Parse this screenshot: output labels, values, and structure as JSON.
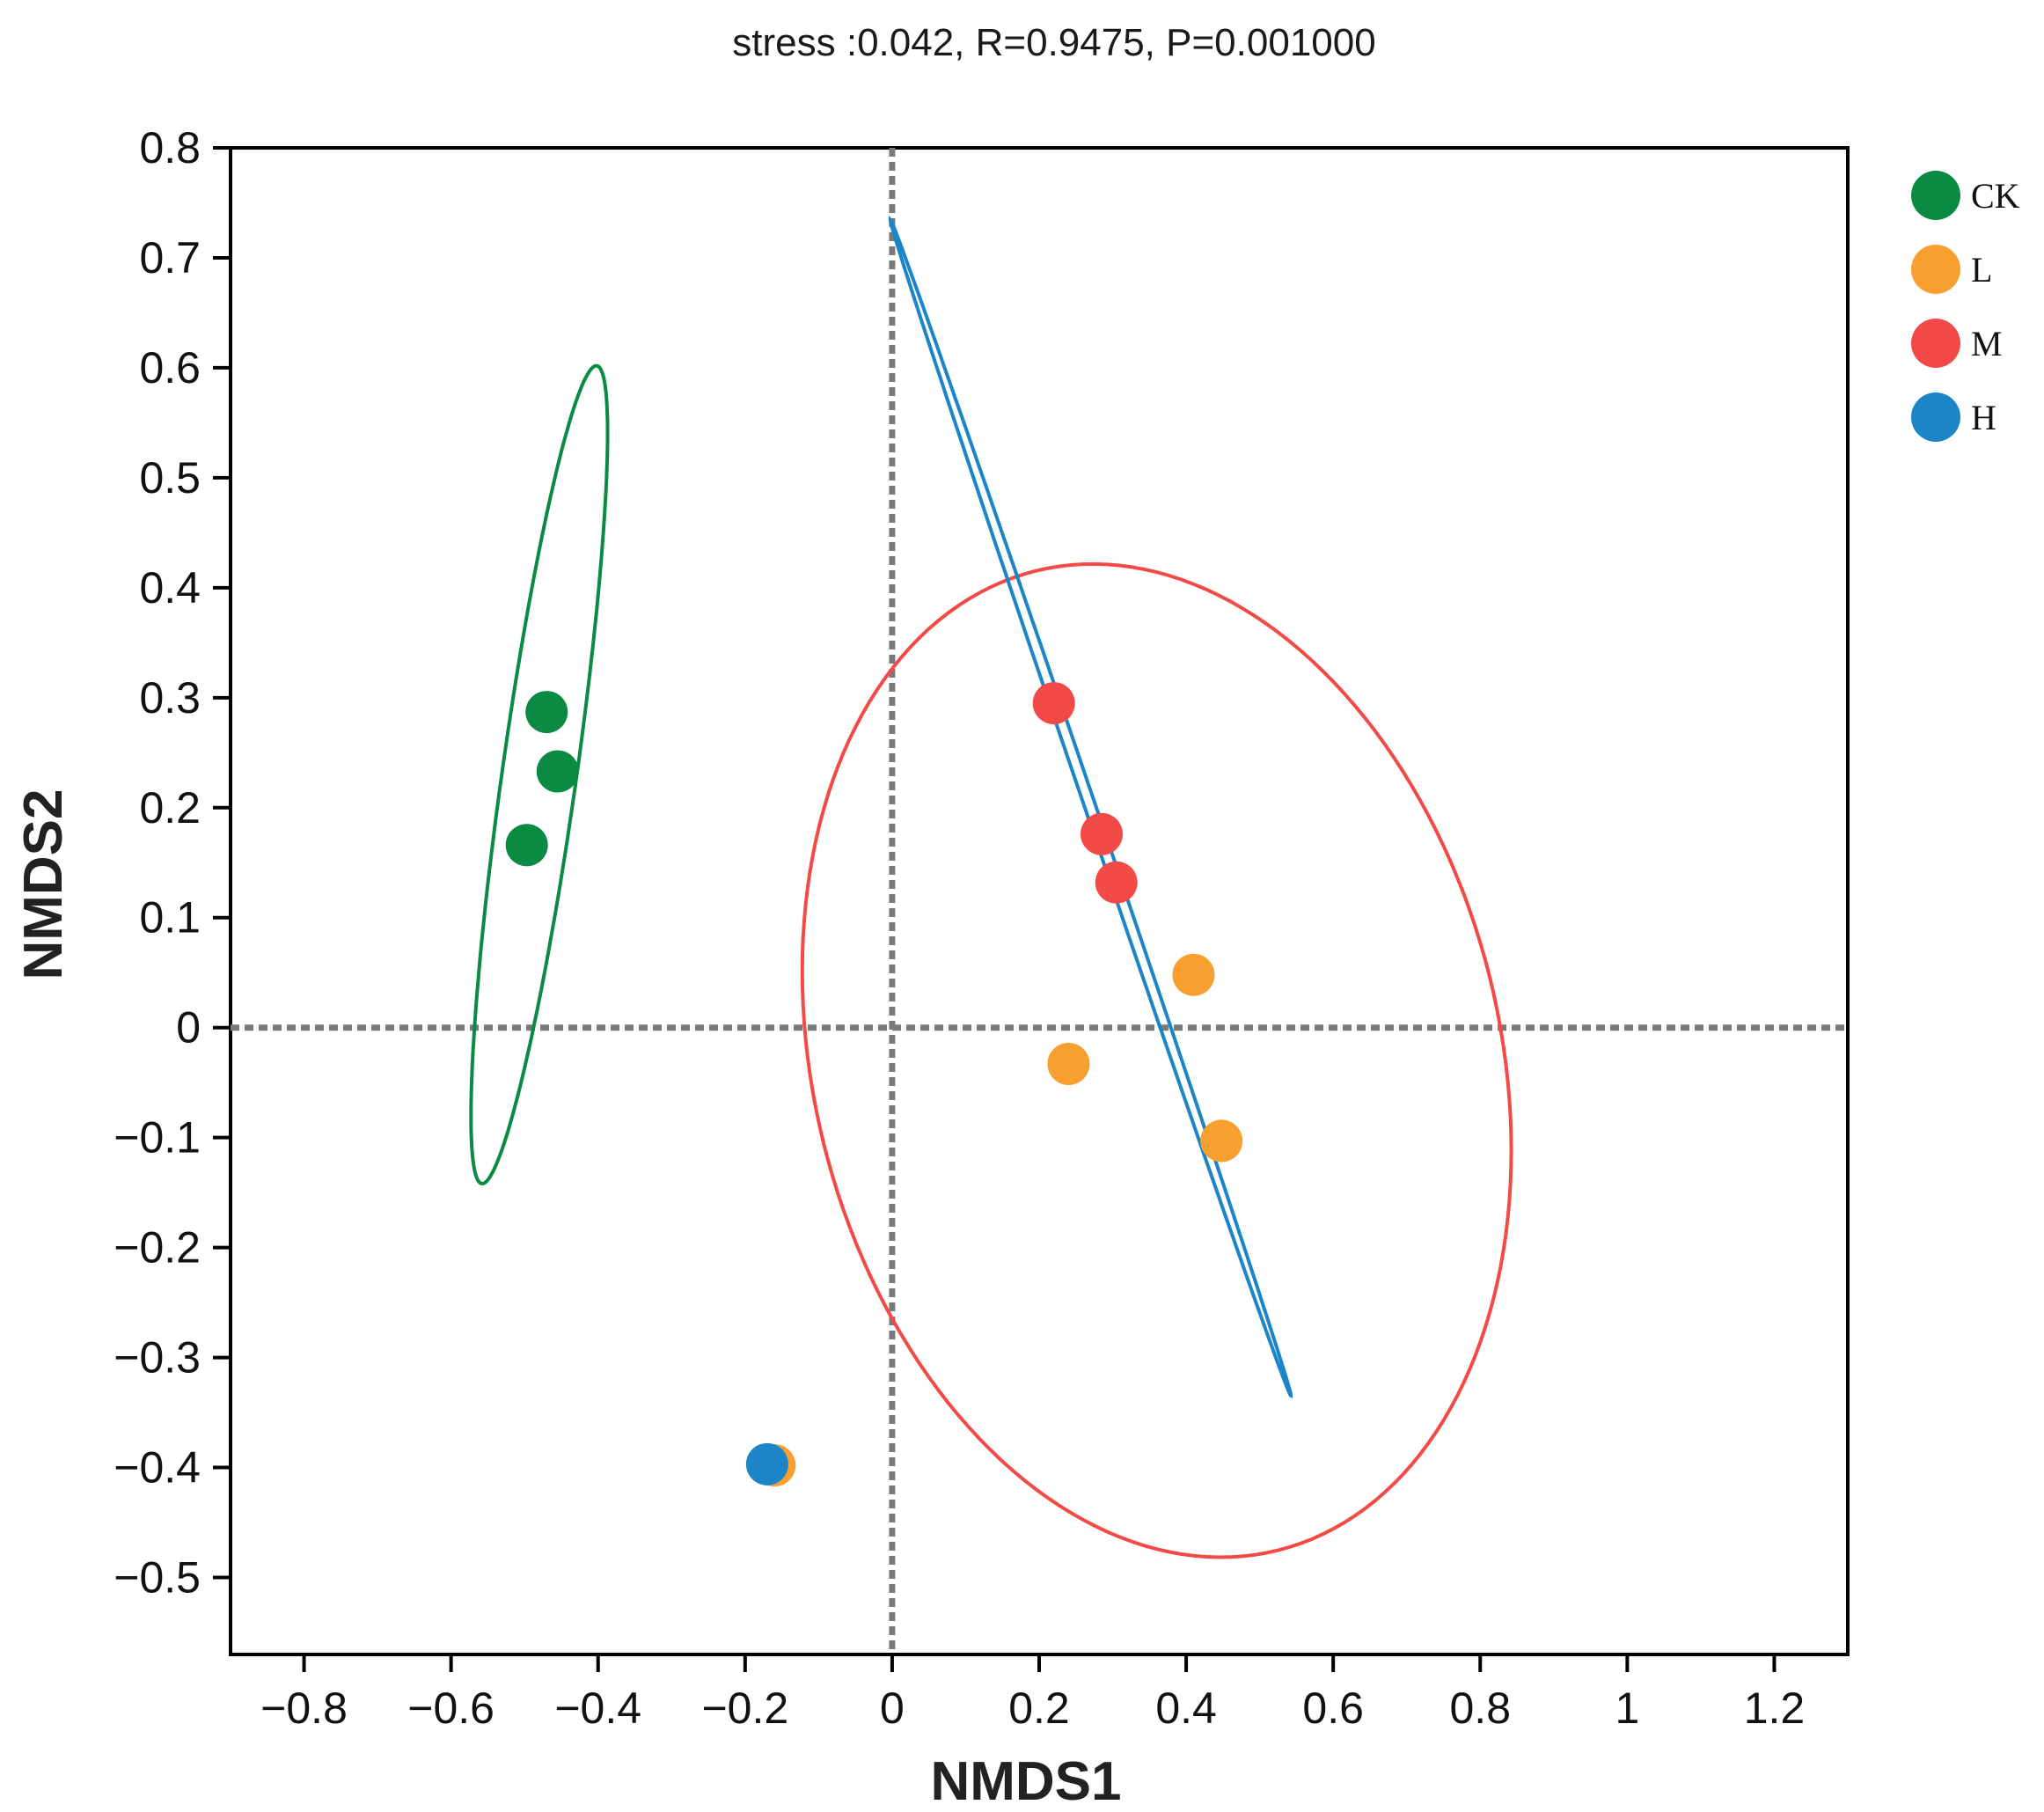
{
  "chart_data": {
    "type": "scatter",
    "title": "stress :0.042, R=0.9475, P=0.001000",
    "xlabel": "NMDS1",
    "ylabel": "NMDS2",
    "xlim": [
      -0.9,
      1.3
    ],
    "ylim": [
      -0.57,
      0.8
    ],
    "xticks": [
      -0.8,
      -0.6,
      -0.4,
      -0.2,
      0,
      0.2,
      0.4,
      0.6,
      0.8,
      1,
      1.2
    ],
    "xtick_labels": [
      "−0.8",
      "−0.6",
      "−0.4",
      "−0.2",
      "0",
      "0.2",
      "0.4",
      "0.6",
      "0.8",
      "1",
      "1.2"
    ],
    "yticks": [
      0.8,
      0.7,
      0.6,
      0.5,
      0.4,
      0.3,
      0.2,
      0.1,
      0,
      -0.1,
      -0.2,
      -0.3,
      -0.4,
      -0.5
    ],
    "ytick_labels": [
      "0.8",
      "0.7",
      "0.6",
      "0.5",
      "0.4",
      "0.3",
      "0.2",
      "0.1",
      "0",
      "−0.1",
      "−0.2",
      "−0.3",
      "−0.4",
      "−0.5"
    ],
    "grid": false,
    "reference_lines": {
      "x": 0,
      "y": 0,
      "style": "dashed"
    },
    "legend_position": "right",
    "series": [
      {
        "name": "CK",
        "color": "#0a8a43",
        "points": [
          [
            -0.47,
            0.287
          ],
          [
            -0.455,
            0.233
          ],
          [
            -0.497,
            0.166
          ]
        ],
        "ellipse": {
          "center": [
            -0.48,
            0.23
          ],
          "semi_major": 0.38,
          "semi_minor": 0.05,
          "angle_deg": 78
        }
      },
      {
        "name": "L",
        "color": "#f7a030",
        "points": [
          [
            0.41,
            0.048
          ],
          [
            0.24,
            -0.033
          ],
          [
            0.448,
            -0.103
          ],
          [
            -0.16,
            -0.398
          ]
        ]
      },
      {
        "name": "M",
        "color": "#f24a46",
        "points": [
          [
            0.22,
            0.295
          ],
          [
            0.285,
            0.176
          ],
          [
            0.305,
            0.132
          ]
        ],
        "ellipse": {
          "center": [
            0.36,
            -0.03
          ],
          "semi_major": 0.51,
          "semi_minor": 0.42,
          "angle_deg": -35
        }
      },
      {
        "name": "H",
        "color": "#1b85c8",
        "points": [
          [
            -0.17,
            -0.397
          ]
        ],
        "ellipse": {
          "center": [
            0.27,
            0.2
          ],
          "semi_major": 0.6,
          "semi_minor": 0.007,
          "angle_deg": -63
        }
      }
    ]
  }
}
